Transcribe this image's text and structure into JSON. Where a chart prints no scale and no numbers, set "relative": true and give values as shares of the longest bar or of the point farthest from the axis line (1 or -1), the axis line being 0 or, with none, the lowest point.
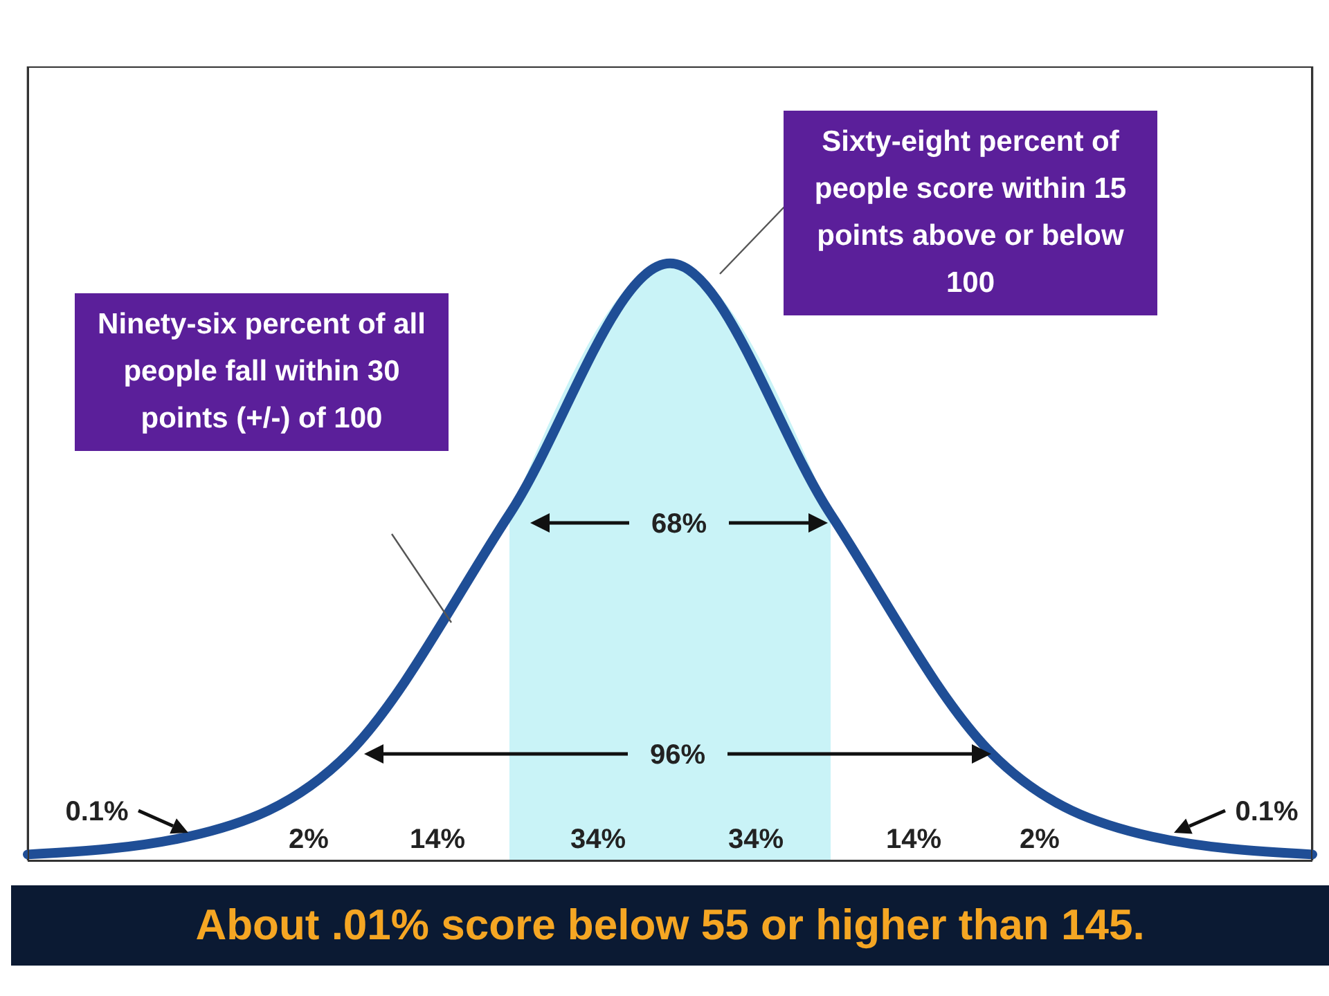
{
  "chart_data": {
    "type": "line",
    "relative": true,
    "categories": [
      null,
      null,
      null,
      null,
      null,
      null,
      null,
      null,
      null
    ],
    "series": [
      {
        "type": "area",
        "color": "#c9f3f7",
        "values": [
          null,
          null,
          null,
          0.58,
          1,
          0.58,
          null,
          null,
          null
        ]
      },
      {
        "color": "#1f4e96",
        "values": [
          0.01,
          0.04,
          0.18,
          0.58,
          1,
          0.58,
          0.18,
          0.04,
          0.01
        ]
      }
    ],
    "grid": "x",
    "tick_labels": false,
    "marker": "none",
    "annotations": [
      "Ninety-six percent of all people fall within 30 points (+/-) of 100",
      "Sixty-eight percent of people score within 15 points above or below 100",
      "About .01% score below 55 or higher than 145.",
      "68%",
      "96%",
      "0.1%",
      "2%",
      "14%",
      "34%",
      "34%",
      "14%",
      "2%",
      "0.1%"
    ]
  }
}
